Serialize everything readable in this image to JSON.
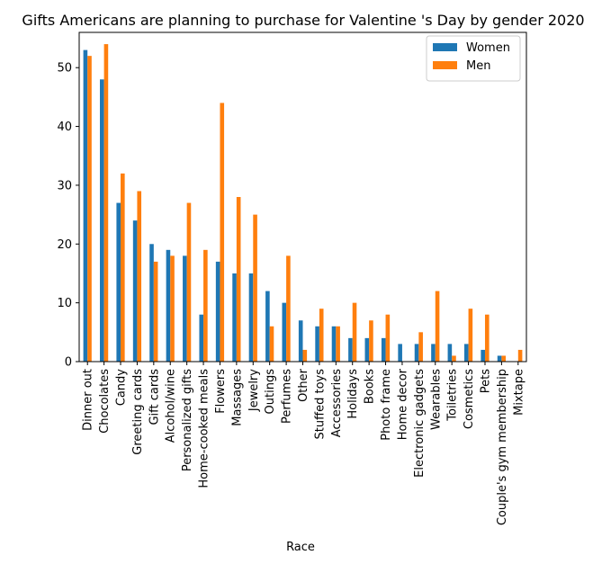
{
  "chart_data": {
    "type": "bar",
    "title": "Gifts Americans are planning to purchase for Valentine 's Day by gender 2020",
    "xlabel": "Race",
    "ylabel": "",
    "ylim": [
      0,
      56
    ],
    "yticks": [
      0,
      10,
      20,
      30,
      40,
      50
    ],
    "grid": false,
    "legend_position": "top-right",
    "categories": [
      "Dinner out",
      "Chocolates",
      "Candy",
      "Greeting cards",
      "Gift cards",
      "Alcohol/wine",
      "Personalized gifts",
      "Home-cooked meals",
      "Flowers",
      "Massages",
      "Jewelry",
      "Outings",
      "Perfumes",
      "Other",
      "Stuffed toys",
      "Accessories",
      "Holidays",
      "Books",
      "Photo frame",
      "Home decor",
      "Electronic gadgets",
      "Wearables",
      "Toiletries",
      "Cosmetics",
      "Pets",
      "Couple's gym membership",
      "Mixtape"
    ],
    "series": [
      {
        "name": "Women",
        "color": "#1f77b4",
        "values": [
          53,
          48,
          27,
          24,
          20,
          19,
          18,
          8,
          17,
          15,
          15,
          12,
          10,
          7,
          6,
          6,
          4,
          4,
          4,
          3,
          3,
          3,
          3,
          3,
          2,
          1,
          0
        ]
      },
      {
        "name": "Men",
        "color": "#ff7f0e",
        "values": [
          52,
          54,
          32,
          29,
          17,
          18,
          27,
          19,
          44,
          28,
          25,
          6,
          18,
          2,
          9,
          6,
          10,
          7,
          8,
          0,
          5,
          12,
          1,
          9,
          8,
          1,
          2
        ]
      }
    ]
  }
}
